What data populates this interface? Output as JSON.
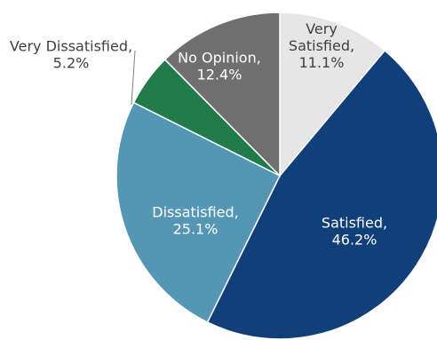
{
  "chart_data": {
    "type": "pie",
    "start_angle_deg": 0,
    "direction": "clockwise",
    "slices": [
      {
        "name": "Very Satisfied",
        "value": 11.1,
        "value_label": "11.1%",
        "color": "#e6e6e6",
        "text_color": "#404040",
        "label_lines": [
          "Very",
          "Satisfied,",
          "11.1%"
        ]
      },
      {
        "name": "Satisfied",
        "value": 46.2,
        "value_label": "46.2%",
        "color": "#113f79",
        "text_color": "#ffffff",
        "label_lines": [
          "Satisfied,",
          "46.2%"
        ]
      },
      {
        "name": "Dissatisfied",
        "value": 25.1,
        "value_label": "25.1%",
        "color": "#5496b4",
        "text_color": "#ffffff",
        "label_lines": [
          "Dissatisfied,",
          "25.1%"
        ]
      },
      {
        "name": "Very Dissatisfied",
        "value": 5.2,
        "value_label": "5.2%",
        "color": "#217a49",
        "text_color": "#404040",
        "label_lines": [
          "Very Dissatisfied,",
          "5.2%"
        ]
      },
      {
        "name": "No Opinion",
        "value": 12.4,
        "value_label": "12.4%",
        "color": "#6f6f70",
        "text_color": "#ffffff",
        "label_lines": [
          "No Opinion,",
          "12.4%"
        ]
      }
    ]
  }
}
